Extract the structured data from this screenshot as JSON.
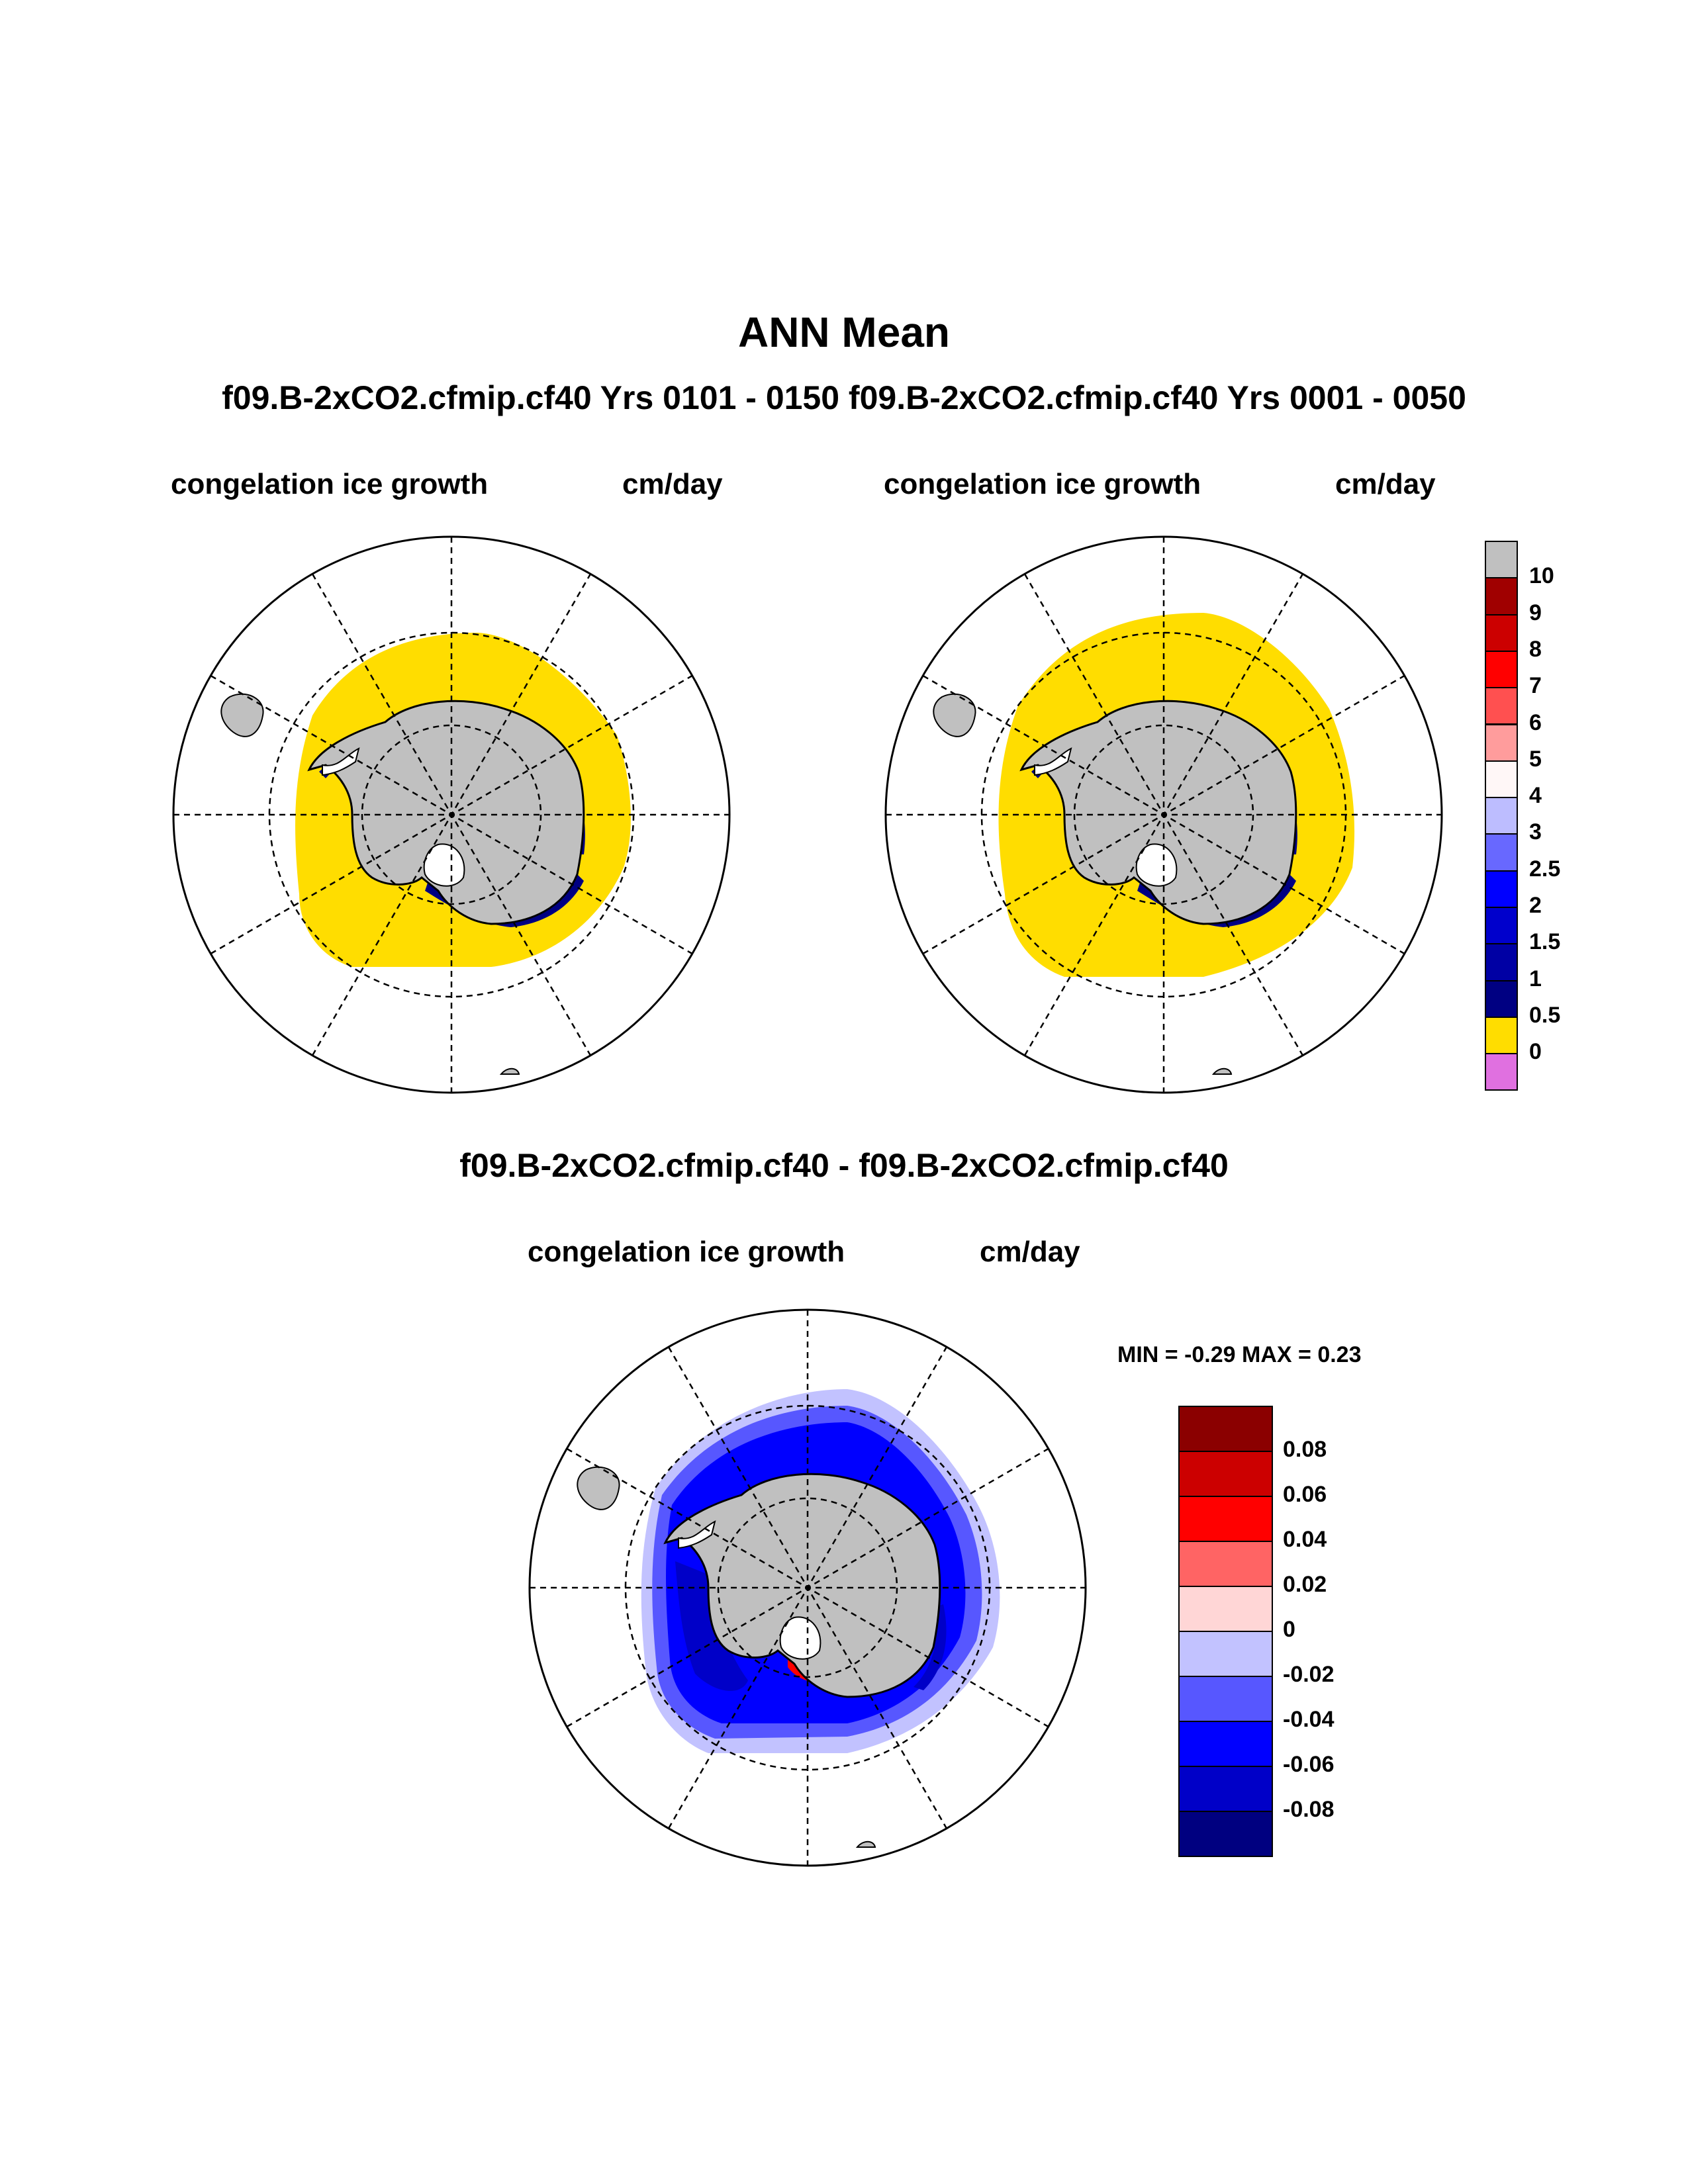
{
  "page": {
    "title": "ANN Mean",
    "case_title": "f09.B-2xCO2.cfmip.cf40  Yrs 0101 - 0150 f09.B-2xCO2.cfmip.cf40  Yrs 0001 - 0050",
    "diff_title": "f09.B-2xCO2.cfmip.cf40 - f09.B-2xCO2.cfmip.cf40"
  },
  "panels": {
    "left": {
      "variable": "congelation ice growth",
      "units": "cm/day"
    },
    "right": {
      "variable": "congelation ice growth",
      "units": "cm/day"
    },
    "diff": {
      "variable": "congelation ice growth",
      "units": "cm/day",
      "min_max": "MIN =  -0.29 MAX =   0.23"
    }
  },
  "colorbars": {
    "abs": {
      "labels": [
        "10",
        "9",
        "8",
        "7",
        "6",
        "5",
        "4",
        "3",
        "2.5",
        "2",
        "1.5",
        "1",
        "0.5",
        "0"
      ],
      "colors": [
        "#c0c0c0",
        "#a00000",
        "#cc0000",
        "#ff0000",
        "#ff5050",
        "#ff9c9c",
        "#fff7f7",
        "#bdbdff",
        "#6868ff",
        "#0000ff",
        "#0000cc",
        "#0000a4",
        "#000082",
        "#ffdd00",
        "#e070e0"
      ]
    },
    "diff": {
      "labels": [
        "0.08",
        "0.06",
        "0.04",
        "0.02",
        "0",
        "-0.02",
        "-0.04",
        "-0.06",
        "-0.08"
      ],
      "colors": [
        "#8b0000",
        "#cc0000",
        "#ff0000",
        "#ff6464",
        "#ffd6d6",
        "#c2c2ff",
        "#5757ff",
        "#0000ff",
        "#0000c8",
        "#000080"
      ]
    }
  },
  "map_colors": {
    "land": "#c0c0c0",
    "ice_shelf": "#ffffff",
    "sea_ice_yellow": "#ffdd00",
    "coast_blue": "#000082",
    "diff_light": "#c2c2ff",
    "diff_mid": "#5757ff",
    "diff_strong": "#0000ff",
    "diff_deep": "#0000c8",
    "diff_red": "#ff0000",
    "diff_darkred": "#8b0000"
  }
}
